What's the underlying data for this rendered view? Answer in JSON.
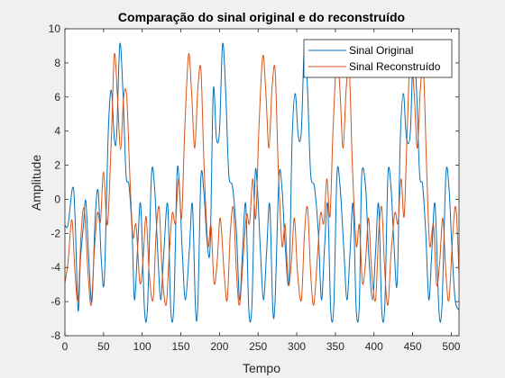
{
  "chart_data": {
    "type": "line",
    "title": "Comparação do sinal original e do reconstruído",
    "xlabel": "Tempo",
    "ylabel": "Amplitude",
    "xlim": [
      0,
      510
    ],
    "ylim": [
      -8,
      10
    ],
    "xticks": [
      0,
      50,
      100,
      150,
      200,
      250,
      300,
      350,
      400,
      450,
      500
    ],
    "yticks": [
      -8,
      -6,
      -4,
      -2,
      0,
      2,
      4,
      6,
      8,
      10
    ],
    "xtick_labels": [
      "0",
      "50",
      "100",
      "150",
      "200",
      "250",
      "300",
      "350",
      "400",
      "450",
      "500"
    ],
    "ytick_labels": [
      "-8",
      "-6",
      "-4",
      "-2",
      "0",
      "2",
      "4",
      "6",
      "8",
      "10"
    ],
    "grid": false,
    "legend_position": "top-right",
    "series": [
      {
        "name": "Sinal Original",
        "color": "#0072bd",
        "x": [
          0,
          4,
          10,
          13,
          17,
          20,
          24,
          27,
          31,
          35,
          39,
          43,
          47,
          51,
          56,
          60,
          64,
          67,
          71,
          75,
          79,
          83,
          87,
          90,
          94,
          98,
          103,
          107,
          112,
          116,
          120,
          124,
          128,
          133,
          137,
          141,
          145,
          148,
          152,
          156,
          161,
          165,
          169,
          172,
          176,
          180,
          184,
          188,
          192,
          196,
          200,
          204,
          208,
          212,
          217,
          222,
          226,
          230,
          234,
          238,
          242,
          246,
          249,
          253,
          257,
          261,
          265,
          269,
          272,
          277,
          281,
          285,
          290,
          294,
          298,
          302,
          306,
          310,
          314,
          318,
          323,
          328,
          332,
          336,
          340,
          344,
          348,
          352,
          356,
          361,
          365,
          369,
          373,
          377,
          381,
          384,
          389,
          393,
          398,
          402,
          406,
          410,
          414,
          418,
          422,
          426,
          430,
          434,
          438,
          442,
          447,
          451,
          455,
          459,
          463,
          467,
          471,
          475,
          479,
          484,
          488,
          493,
          497,
          501,
          505,
          510
        ],
        "y": [
          -1.5,
          -1.5,
          0.7,
          -0.9,
          -6.5,
          -3.6,
          -1.5,
          -0.1,
          -3.6,
          -6.0,
          -1.2,
          0.5,
          -3.5,
          -4.7,
          3.8,
          6.4,
          3.5,
          3.8,
          9.1,
          6.4,
          1.5,
          0.8,
          -2.0,
          -5.9,
          -2.9,
          -0.3,
          -6.5,
          -6.2,
          1.4,
          0.7,
          -3.0,
          -5.9,
          -3.1,
          -0.3,
          -6.5,
          -6.2,
          1.4,
          0.9,
          -3.2,
          -5.9,
          -3.0,
          -0.3,
          -6.4,
          -6.2,
          1.3,
          0.3,
          -2.5,
          -2.7,
          6.4,
          3.6,
          4.0,
          9.1,
          6.4,
          1.5,
          0.7,
          -2.0,
          -5.9,
          -2.9,
          -0.3,
          -6.5,
          -6.2,
          1.3,
          0.7,
          -3.0,
          -5.9,
          -3.1,
          -0.3,
          -6.4,
          -5.9,
          1.3,
          0.6,
          -2.7,
          -4.8,
          3.5,
          6.2,
          3.7,
          4.0,
          9.1,
          6.4,
          1.5,
          0.7,
          -2.0,
          -5.9,
          -2.8,
          -0.3,
          -6.5,
          -6.2,
          1.4,
          0.8,
          -3.0,
          -5.9,
          -3.1,
          -0.3,
          -6.5,
          -6.2,
          1.3,
          0.8,
          -3.1,
          -5.9,
          -3.1,
          -0.3,
          -6.5,
          -6.2,
          1.4,
          0.7,
          -2.8,
          -4.9,
          3.5,
          6.2,
          3.6,
          3.9,
          9.1,
          6.4,
          1.5,
          0.8,
          -2.0,
          -5.9,
          -2.9,
          -0.3,
          -6.5,
          -6.2,
          1.4,
          0.7,
          -3.0,
          -5.9,
          -6.5
        ]
      },
      {
        "name": "Sinal Reconstruído",
        "color": "#d95319",
        "x": [
          0,
          4,
          9,
          13,
          17,
          21,
          25,
          30,
          34,
          38,
          42,
          46,
          50,
          55,
          60,
          64,
          68,
          72,
          76,
          80,
          84,
          88,
          92,
          97,
          101,
          105,
          109,
          114,
          118,
          122,
          126,
          131,
          135,
          139,
          143,
          147,
          151,
          155,
          160,
          164,
          168,
          172,
          176,
          180,
          185,
          189,
          193,
          197,
          201,
          206,
          210,
          214,
          218,
          222,
          226,
          231,
          235,
          239,
          243,
          247,
          251,
          256,
          260,
          264,
          268,
          272,
          276,
          281,
          285,
          289,
          293,
          297,
          301,
          306,
          310,
          314,
          318,
          322,
          327,
          331,
          335,
          339,
          343,
          347,
          352,
          356,
          360,
          364,
          368,
          372,
          377,
          381,
          385,
          389,
          393,
          397,
          402,
          406,
          410,
          414,
          418,
          422,
          427,
          431,
          435,
          439,
          443,
          447,
          452,
          456,
          460,
          464,
          468,
          472,
          477,
          481,
          485,
          489,
          493,
          497,
          502,
          506,
          510
        ],
        "y": [
          -4.9,
          -3.7,
          -1.2,
          -4.3,
          -5.9,
          -2.0,
          -0.6,
          -4.4,
          -6.2,
          -3.1,
          -0.8,
          -1.3,
          1.6,
          -1.5,
          3.5,
          8.5,
          6.0,
          2.9,
          6.0,
          6.0,
          1.4,
          -2.2,
          -1.5,
          -4.9,
          -3.6,
          -1.0,
          -4.3,
          -5.9,
          -2.0,
          -0.5,
          -4.4,
          -6.2,
          -3.2,
          -0.8,
          -1.4,
          1.2,
          -1.1,
          4.0,
          8.5,
          6.2,
          3.0,
          6.5,
          7.6,
          2.0,
          -2.7,
          -1.5,
          -4.9,
          -3.7,
          -1.1,
          -4.3,
          -5.9,
          -2.0,
          -0.5,
          -4.3,
          -6.2,
          -3.2,
          -0.9,
          -1.4,
          1.2,
          -1.1,
          4.1,
          8.4,
          6.3,
          3.0,
          6.5,
          7.6,
          2.0,
          -2.7,
          -1.5,
          -5.0,
          -3.7,
          -1.1,
          -4.3,
          -5.9,
          -2.0,
          -0.5,
          -4.3,
          -6.2,
          -3.2,
          -0.8,
          -1.4,
          1.2,
          -1.0,
          4.1,
          8.5,
          6.3,
          3.0,
          6.5,
          7.6,
          2.0,
          -2.7,
          -1.5,
          -4.9,
          -3.7,
          -1.1,
          -4.3,
          -5.9,
          -2.0,
          -0.5,
          -4.3,
          -6.2,
          -3.2,
          -0.8,
          -1.4,
          1.2,
          -1.0,
          4.1,
          8.5,
          6.2,
          3.0,
          6.5,
          7.6,
          2.0,
          -2.7,
          -1.5,
          -5.0,
          -3.7,
          -1.1,
          -4.3,
          -5.9,
          -2.0,
          -0.5,
          -4.3
        ]
      }
    ]
  }
}
